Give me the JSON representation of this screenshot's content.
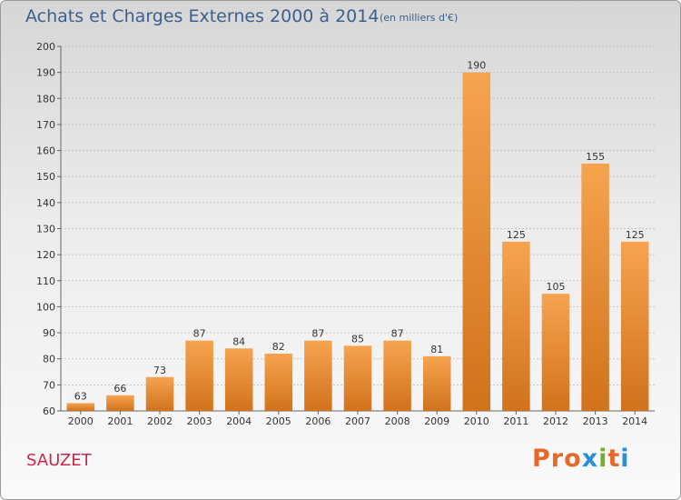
{
  "header": {
    "title": "Achats et Charges Externes 2000 à 2014",
    "subtitle": "(en milliers d'€)"
  },
  "footer": {
    "commune": "SAUZET",
    "logo": "Proxiti"
  },
  "colors": {
    "bar_light": "#f6a350",
    "bar_dark": "#d1721c",
    "title": "#3d5f8c",
    "commune": "#c8284a",
    "logo_letters": [
      "#e8682a",
      "#e8682a",
      "#e8682a",
      "#2a8fd6",
      "#6fae2e",
      "#e8682a",
      "#2a8fd6"
    ]
  },
  "chart_data": {
    "type": "bar",
    "title": "Achats et Charges Externes 2000 à 2014",
    "subtitle": "(en milliers d'€)",
    "categories": [
      "2000",
      "2001",
      "2002",
      "2003",
      "2004",
      "2005",
      "2006",
      "2007",
      "2008",
      "2009",
      "2010",
      "2011",
      "2012",
      "2013",
      "2014"
    ],
    "values": [
      63,
      66,
      73,
      87,
      84,
      82,
      87,
      85,
      87,
      81,
      190,
      125,
      105,
      155,
      125
    ],
    "ylim": [
      60,
      200
    ],
    "yticks": [
      60,
      70,
      80,
      90,
      100,
      110,
      120,
      130,
      140,
      150,
      160,
      170,
      180,
      190,
      200
    ],
    "xlabel": "",
    "ylabel": "",
    "grid": true
  }
}
